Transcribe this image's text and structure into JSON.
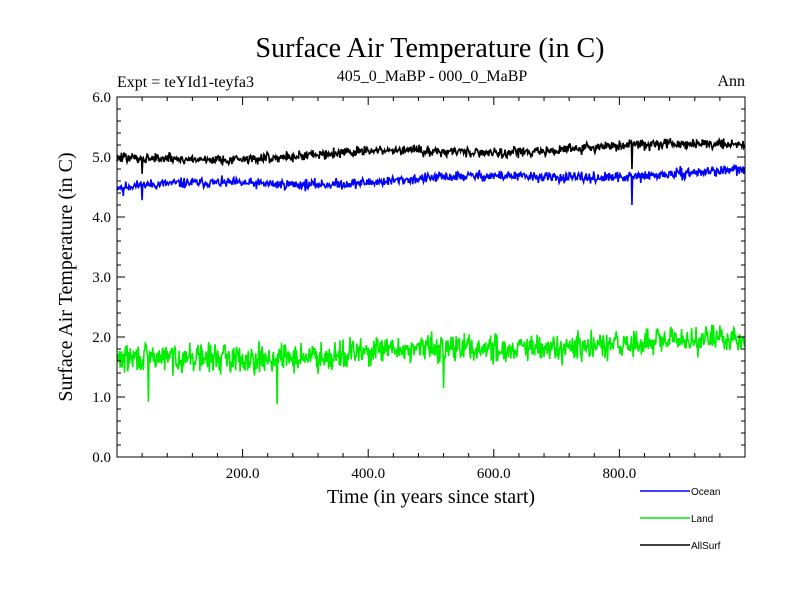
{
  "chart_data": {
    "type": "line",
    "title": "Surface Air Temperature (in C)",
    "left_label": "Expt = teYId1-teyfa3",
    "center_label": "405_0_MaBP - 000_0_MaBP",
    "right_label": "Ann",
    "xlabel": "Time (in years since start)",
    "ylabel": "Surface Air Temperature (in C)",
    "xlim": [
      0,
      1000
    ],
    "ylim": [
      0,
      6
    ],
    "xticks": [
      200,
      400,
      600,
      800
    ],
    "xtick_labels": [
      "200.0",
      "400.0",
      "600.0",
      "800.0"
    ],
    "yticks": [
      0,
      1,
      2,
      3,
      4,
      5,
      6
    ],
    "ytick_labels": [
      "0.0",
      "1.0",
      "2.0",
      "3.0",
      "4.0",
      "5.0",
      "6.0"
    ],
    "legend_position": "bottom-right",
    "series": [
      {
        "name": "Ocean",
        "color": "#0000ff",
        "start": 4.5,
        "end": 4.75,
        "noise": 0.08,
        "seed": 11,
        "dips": [
          {
            "x": 820,
            "y": 4.2
          },
          {
            "x": 10,
            "y": 4.35
          },
          {
            "x": 40,
            "y": 4.28
          }
        ]
      },
      {
        "name": "Land",
        "color": "#00ee00",
        "start": 1.6,
        "end": 1.95,
        "noise": 0.22,
        "seed": 29,
        "dips": [
          {
            "x": 255,
            "y": 0.88
          },
          {
            "x": 50,
            "y": 0.92
          },
          {
            "x": 520,
            "y": 1.15
          }
        ]
      },
      {
        "name": "AllSurf",
        "color": "#000000",
        "start": 4.95,
        "end": 5.22,
        "noise": 0.08,
        "seed": 47,
        "dips": [
          {
            "x": 820,
            "y": 4.8
          },
          {
            "x": 40,
            "y": 4.72
          }
        ]
      }
    ]
  }
}
